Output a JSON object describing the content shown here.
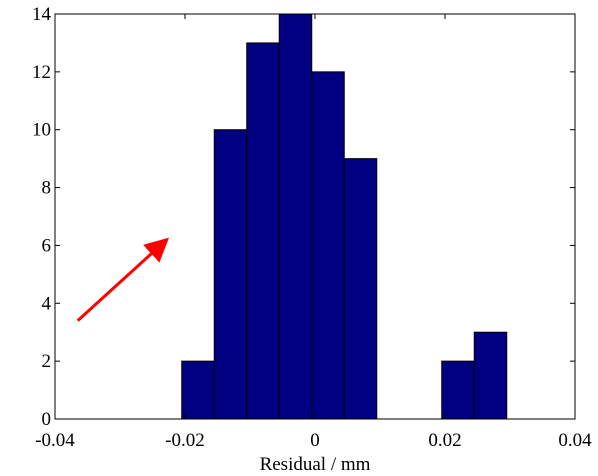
{
  "chart_data": {
    "type": "histogram",
    "title": "",
    "xlabel": "Residual / mm",
    "ylabel": "",
    "xlim": [
      -0.04,
      0.04
    ],
    "ylim": [
      0,
      14
    ],
    "xticks": [
      -0.04,
      -0.02,
      0,
      0.02,
      0.04
    ],
    "xtick_labels": [
      "-0.04",
      "-0.02",
      "0",
      "0.02",
      "0.04"
    ],
    "yticks": [
      0,
      2,
      4,
      6,
      8,
      10,
      12,
      14
    ],
    "ytick_labels": [
      "0",
      "2",
      "4",
      "6",
      "8",
      "10",
      "12",
      "14"
    ],
    "bins": [
      {
        "x0": -0.0205,
        "x1": -0.0155,
        "count": 2
      },
      {
        "x0": -0.0155,
        "x1": -0.0105,
        "count": 10
      },
      {
        "x0": -0.0105,
        "x1": -0.0055,
        "count": 13
      },
      {
        "x0": -0.0055,
        "x1": -0.0005,
        "count": 14
      },
      {
        "x0": -0.0005,
        "x1": 0.0045,
        "count": 12
      },
      {
        "x0": 0.0045,
        "x1": 0.0095,
        "count": 9
      },
      {
        "x0": 0.0095,
        "x1": 0.0145,
        "count": 0
      },
      {
        "x0": 0.0145,
        "x1": 0.0195,
        "count": 0
      },
      {
        "x0": 0.0195,
        "x1": 0.0245,
        "count": 2
      },
      {
        "x0": 0.0245,
        "x1": 0.0295,
        "count": 3
      }
    ],
    "bar_color": "#000080",
    "bar_edge_color": "#000000",
    "grid": false,
    "annotations": [
      {
        "type": "arrow",
        "color": "#ff0000",
        "from": [
          -0.0365,
          3.4
        ],
        "to": [
          -0.0228,
          6.2
        ]
      }
    ]
  }
}
